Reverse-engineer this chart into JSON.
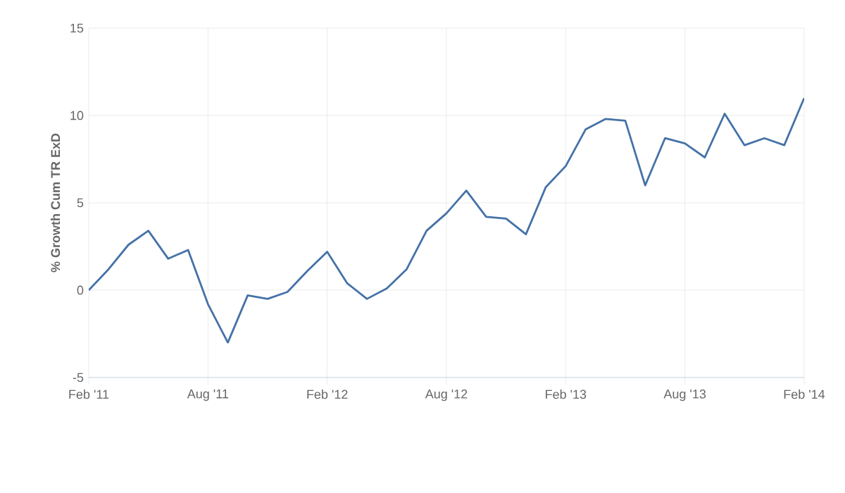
{
  "chart_data": {
    "type": "line",
    "ylabel": "% Growth Cum TR ExD",
    "x": [
      "2011-02",
      "2011-03",
      "2011-04",
      "2011-05",
      "2011-06",
      "2011-07",
      "2011-08",
      "2011-09",
      "2011-10",
      "2011-11",
      "2011-12",
      "2012-01",
      "2012-02",
      "2012-03",
      "2012-04",
      "2012-05",
      "2012-06",
      "2012-07",
      "2012-08",
      "2012-09",
      "2012-10",
      "2012-11",
      "2012-12",
      "2013-01",
      "2013-02",
      "2013-03",
      "2013-04",
      "2013-05",
      "2013-06",
      "2013-07",
      "2013-08",
      "2013-09",
      "2013-10",
      "2013-11",
      "2013-12",
      "2014-01",
      "2014-02"
    ],
    "series": [
      {
        "color": "#4572a7",
        "values": [
          0.0,
          1.2,
          2.6,
          3.4,
          1.8,
          2.3,
          -0.8,
          -3.0,
          -0.3,
          -0.5,
          -0.1,
          1.1,
          2.2,
          0.4,
          -0.5,
          0.1,
          1.2,
          3.4,
          4.4,
          5.7,
          4.2,
          4.1,
          3.2,
          5.9,
          7.1,
          9.2,
          9.8,
          9.7,
          6.0,
          8.7,
          8.4,
          7.6,
          10.1,
          8.3,
          8.7,
          8.3,
          11.0
        ]
      }
    ],
    "xlim": [
      "2011-02",
      "2014-02"
    ],
    "xticks": [
      {
        "value": "2011-02",
        "label": "Feb '11"
      },
      {
        "value": "2011-08",
        "label": "Aug '11"
      },
      {
        "value": "2012-02",
        "label": "Feb '12"
      },
      {
        "value": "2012-08",
        "label": "Aug '12"
      },
      {
        "value": "2013-02",
        "label": "Feb '13"
      },
      {
        "value": "2013-08",
        "label": "Aug '13"
      },
      {
        "value": "2014-02",
        "label": "Feb '14"
      }
    ],
    "ylim": [
      -5,
      15
    ],
    "yticks": [
      -5,
      0,
      5,
      10,
      15
    ],
    "grid": true,
    "marker": "none",
    "line_style": "solid"
  }
}
